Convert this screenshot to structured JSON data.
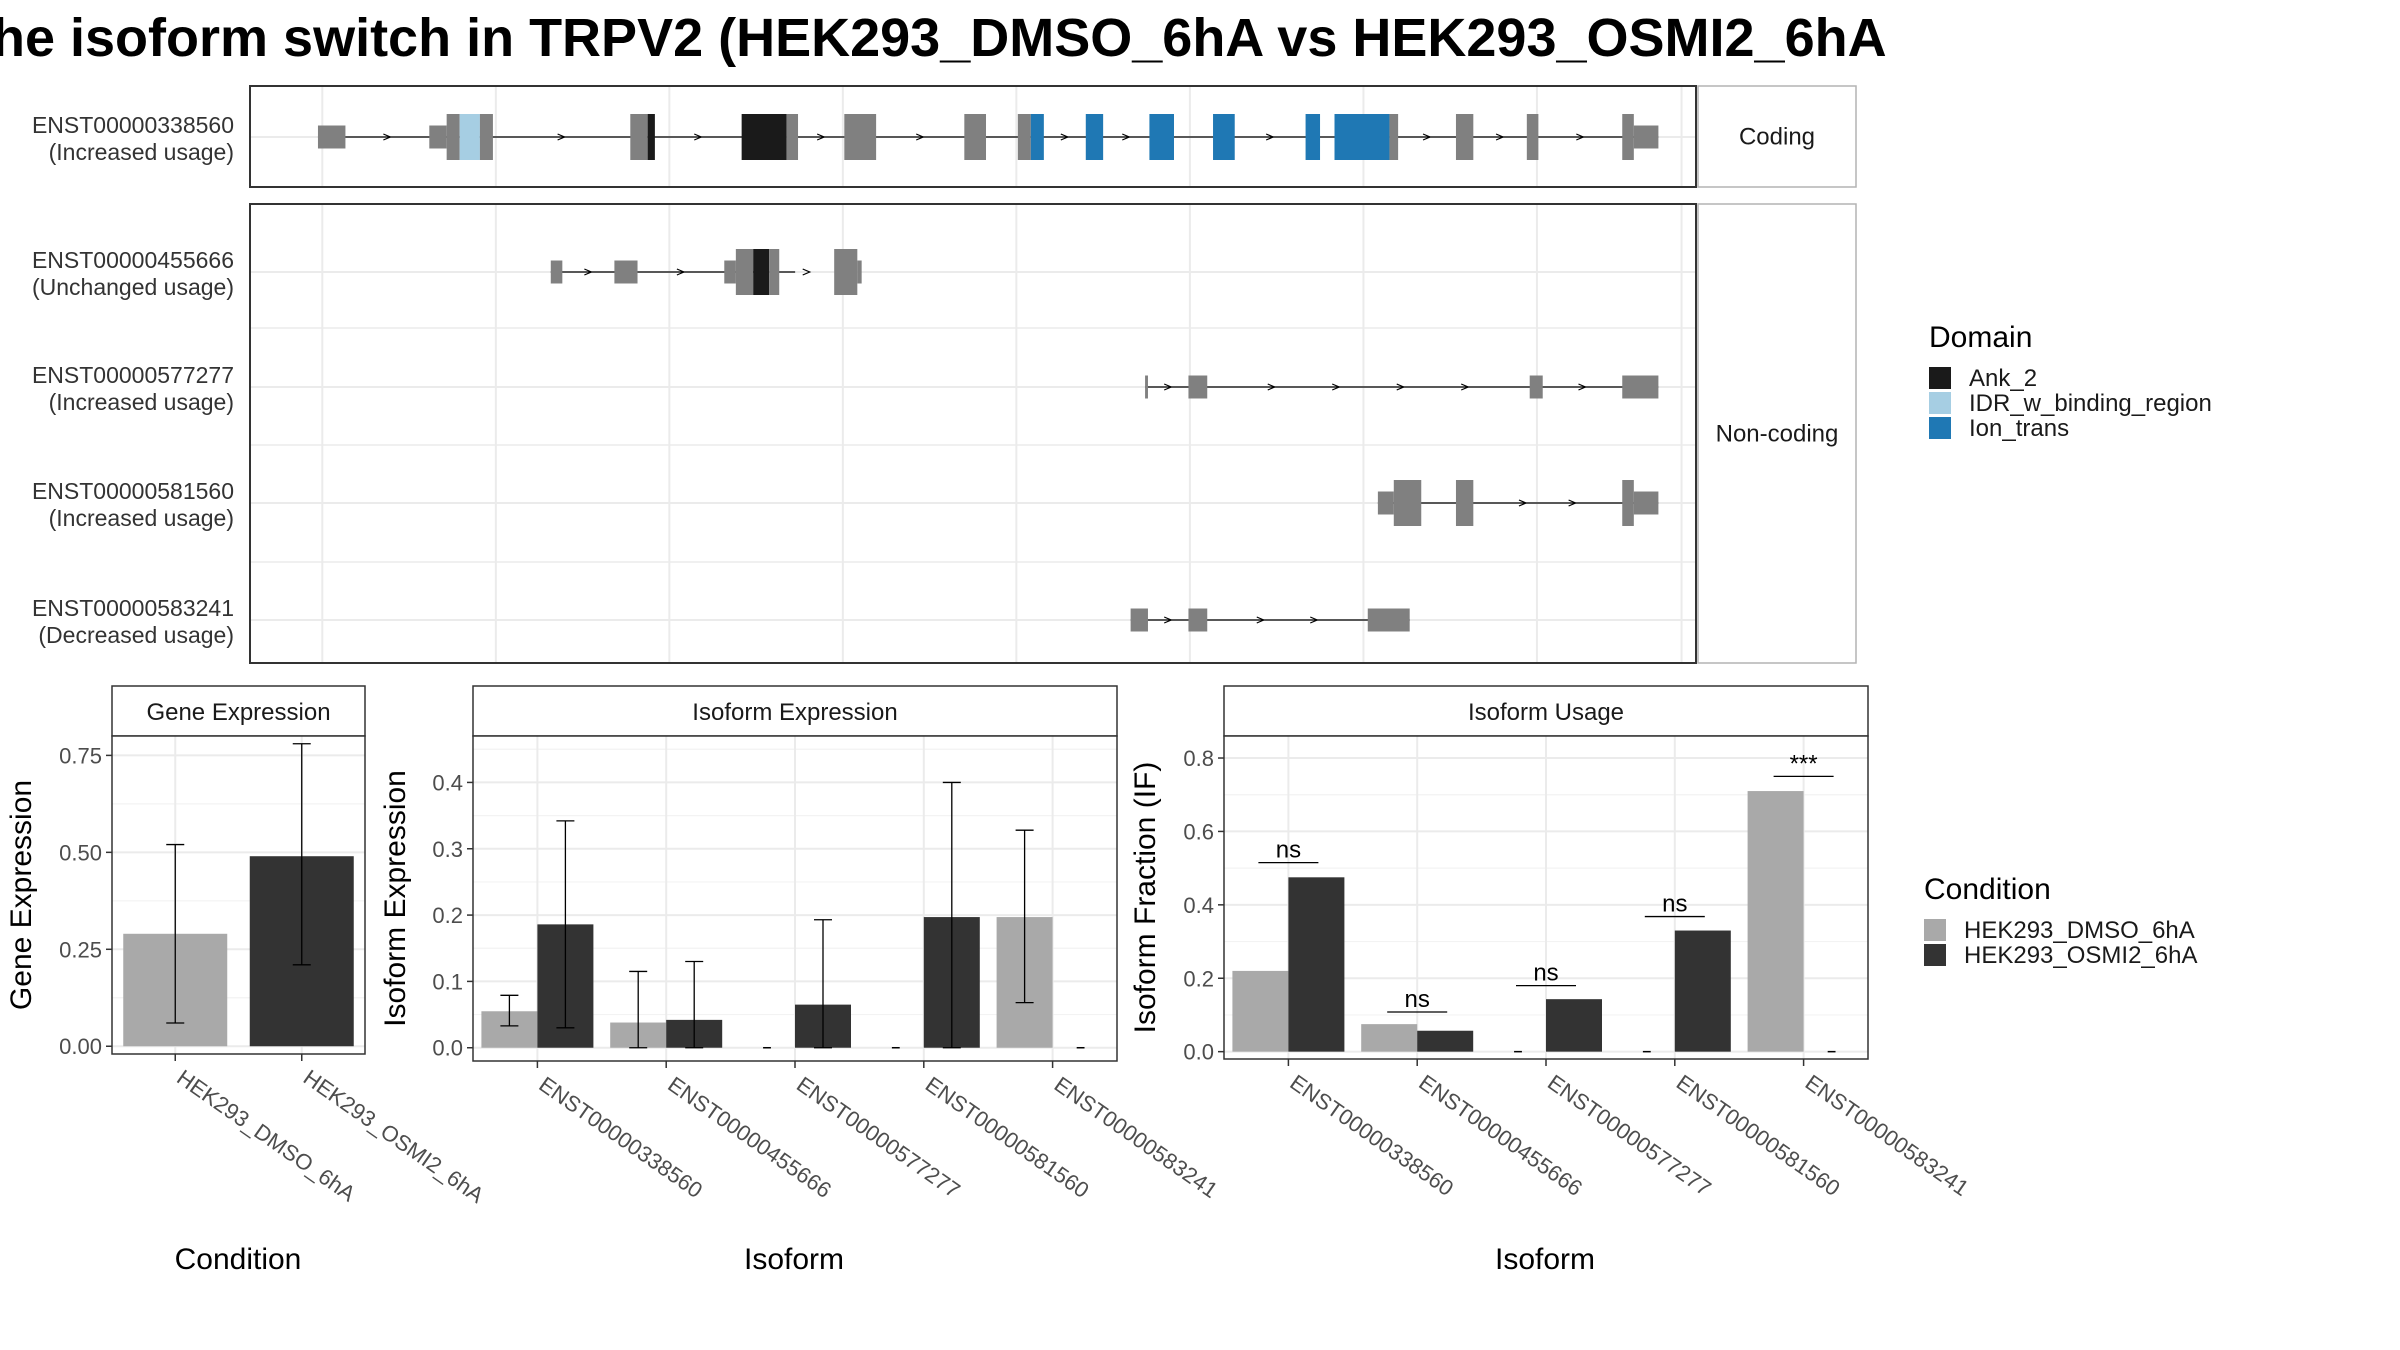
{
  "title": "he isoform switch in TRPV2 (HEK293_DMSO_6hA vs HEK293_OSMI2_6hA",
  "colors": {
    "exon_gray": "#808080",
    "ank2": "#1a1a1a",
    "idr": "#a6cee3",
    "ion_trans": "#1f78b4",
    "dmso": "#a9a9a9",
    "osmi2": "#333333",
    "grid": "#ebebeb",
    "panel_border": "#333333"
  },
  "structure": {
    "genomic_range": [
      0,
      100
    ],
    "strips": {
      "coding": "Coding",
      "noncoding": "Non-coding"
    },
    "transcripts": [
      {
        "id": "ENST00000338560",
        "usage": "(Increased usage)",
        "group": "coding",
        "span": [
          4.7,
          97.4
        ],
        "exons": [
          {
            "start": 4.7,
            "end": 6.6,
            "h": "small",
            "fill": "exon_gray"
          },
          {
            "start": 12.4,
            "end": 13.6,
            "h": "small",
            "fill": "exon_gray"
          },
          {
            "start": 13.6,
            "end": 14.5,
            "h": "large",
            "fill": "exon_gray"
          },
          {
            "start": 14.5,
            "end": 15.9,
            "h": "large",
            "fill": "idr"
          },
          {
            "start": 15.9,
            "end": 16.8,
            "h": "large",
            "fill": "exon_gray"
          },
          {
            "start": 26.3,
            "end": 27.5,
            "h": "large",
            "fill": "exon_gray"
          },
          {
            "start": 27.5,
            "end": 28.0,
            "h": "large",
            "fill": "ank2"
          },
          {
            "start": 34.0,
            "end": 37.1,
            "h": "large",
            "fill": "ank2"
          },
          {
            "start": 37.1,
            "end": 37.9,
            "h": "large",
            "fill": "exon_gray"
          },
          {
            "start": 41.1,
            "end": 43.3,
            "h": "large",
            "fill": "exon_gray"
          },
          {
            "start": 49.4,
            "end": 50.9,
            "h": "large",
            "fill": "exon_gray"
          },
          {
            "start": 53.1,
            "end": 54.0,
            "h": "large",
            "fill": "exon_gray"
          },
          {
            "start": 54.0,
            "end": 54.9,
            "h": "large",
            "fill": "ion_trans"
          },
          {
            "start": 57.8,
            "end": 59.0,
            "h": "large",
            "fill": "ion_trans"
          },
          {
            "start": 62.2,
            "end": 63.9,
            "h": "large",
            "fill": "ion_trans"
          },
          {
            "start": 66.6,
            "end": 68.1,
            "h": "large",
            "fill": "ion_trans"
          },
          {
            "start": 73.0,
            "end": 74.0,
            "h": "large",
            "fill": "ion_trans"
          },
          {
            "start": 75.0,
            "end": 78.8,
            "h": "large",
            "fill": "ion_trans"
          },
          {
            "start": 78.8,
            "end": 79.4,
            "h": "large",
            "fill": "exon_gray"
          },
          {
            "start": 83.4,
            "end": 84.6,
            "h": "large",
            "fill": "exon_gray"
          },
          {
            "start": 88.3,
            "end": 89.1,
            "h": "large",
            "fill": "exon_gray"
          },
          {
            "start": 94.9,
            "end": 95.7,
            "h": "large",
            "fill": "exon_gray"
          },
          {
            "start": 95.7,
            "end": 97.4,
            "h": "small",
            "fill": "exon_gray"
          }
        ]
      },
      {
        "id": "ENST00000455666",
        "usage": "(Unchanged usage)",
        "group": "noncoding",
        "span": [
          20.8,
          37.7
        ],
        "exons": [
          {
            "start": 20.8,
            "end": 21.6,
            "h": "small",
            "fill": "exon_gray"
          },
          {
            "start": 25.2,
            "end": 26.8,
            "h": "small",
            "fill": "exon_gray"
          },
          {
            "start": 32.8,
            "end": 33.6,
            "h": "small",
            "fill": "exon_gray"
          },
          {
            "start": 33.6,
            "end": 34.8,
            "h": "large",
            "fill": "exon_gray"
          },
          {
            "start": 34.8,
            "end": 35.9,
            "h": "large",
            "fill": "ank2"
          },
          {
            "start": 35.9,
            "end": 36.6,
            "h": "large",
            "fill": "exon_gray"
          },
          {
            "start": 40.4,
            "end": 42.0,
            "h": "large",
            "fill": "exon_gray"
          },
          {
            "start": 42.0,
            "end": 42.3,
            "h": "small",
            "fill": "exon_gray"
          }
        ]
      },
      {
        "id": "ENST00000577277",
        "usage": "(Increased usage)",
        "group": "noncoding",
        "span": [
          61.9,
          97.4
        ],
        "exons": [
          {
            "start": 61.9,
            "end": 62.1,
            "h": "small",
            "fill": "exon_gray"
          },
          {
            "start": 64.9,
            "end": 66.2,
            "h": "small",
            "fill": "exon_gray"
          },
          {
            "start": 88.5,
            "end": 89.4,
            "h": "small",
            "fill": "exon_gray"
          },
          {
            "start": 94.9,
            "end": 97.4,
            "h": "small",
            "fill": "exon_gray"
          }
        ]
      },
      {
        "id": "ENST00000581560",
        "usage": "(Increased usage)",
        "group": "noncoding",
        "span": [
          78.0,
          97.4
        ],
        "exons": [
          {
            "start": 78.0,
            "end": 79.1,
            "h": "small",
            "fill": "exon_gray"
          },
          {
            "start": 79.1,
            "end": 81.0,
            "h": "large",
            "fill": "exon_gray"
          },
          {
            "start": 83.4,
            "end": 84.6,
            "h": "large",
            "fill": "exon_gray"
          },
          {
            "start": 94.9,
            "end": 95.7,
            "h": "large",
            "fill": "exon_gray"
          },
          {
            "start": 95.7,
            "end": 97.4,
            "h": "small",
            "fill": "exon_gray"
          }
        ]
      },
      {
        "id": "ENST00000583241",
        "usage": "(Decreased usage)",
        "group": "noncoding",
        "span": [
          60.9,
          80.2
        ],
        "exons": [
          {
            "start": 60.9,
            "end": 62.1,
            "h": "small",
            "fill": "exon_gray"
          },
          {
            "start": 64.9,
            "end": 66.2,
            "h": "small",
            "fill": "exon_gray"
          },
          {
            "start": 77.3,
            "end": 80.2,
            "h": "small",
            "fill": "exon_gray"
          }
        ]
      }
    ]
  },
  "legend_domain": {
    "title": "Domain",
    "items": [
      {
        "label": "Ank_2",
        "color": "ank2"
      },
      {
        "label": "IDR_w_binding_region",
        "color": "idr"
      },
      {
        "label": "Ion_trans",
        "color": "ion_trans"
      }
    ]
  },
  "legend_condition": {
    "title": "Condition",
    "items": [
      {
        "label": "HEK293_DMSO_6hA",
        "color": "dmso"
      },
      {
        "label": "HEK293_OSMI2_6hA",
        "color": "osmi2"
      }
    ]
  },
  "chart_data": [
    {
      "type": "bar",
      "title": "Gene Expression",
      "xlabel": "Condition",
      "ylabel": "Gene Expression",
      "ylim": [
        -0.02,
        0.8
      ],
      "yticks": [
        "0.00",
        "0.25",
        "0.50",
        "0.75"
      ],
      "ytick_values": [
        0,
        0.25,
        0.5,
        0.75
      ],
      "categories": [
        "HEK293_DMSO_6hA",
        "HEK293_OSMI2_6hA"
      ],
      "bars": [
        {
          "category": 0,
          "offset": 0,
          "color": "dmso",
          "value": 0.29,
          "err": [
            0.06,
            0.52
          ]
        },
        {
          "category": 1,
          "offset": 0,
          "color": "osmi2",
          "value": 0.49,
          "err": [
            0.21,
            0.78
          ]
        }
      ]
    },
    {
      "type": "bar",
      "title": "Isoform Expression",
      "xlabel": "Isoform",
      "ylabel": "Isoform Expression",
      "ylim": [
        -0.02,
        0.47
      ],
      "yticks": [
        "0.0",
        "0.1",
        "0.2",
        "0.3",
        "0.4"
      ],
      "ytick_values": [
        0,
        0.1,
        0.2,
        0.3,
        0.4
      ],
      "categories": [
        "ENST00000338560",
        "ENST00000455666",
        "ENST00000577277",
        "ENST00000581560",
        "ENST00000583241"
      ],
      "series": [
        {
          "name": "HEK293_DMSO_6hA",
          "values": [
            0.055,
            0.038,
            0.0,
            0.0,
            0.197
          ]
        },
        {
          "name": "HEK293_OSMI2_6hA",
          "values": [
            0.186,
            0.042,
            0.065,
            0.197,
            0.0
          ]
        }
      ],
      "bars": [
        {
          "category": 0,
          "offset": -1,
          "color": "dmso",
          "value": 0.055,
          "err": [
            0.033,
            0.079
          ]
        },
        {
          "category": 0,
          "offset": 1,
          "color": "osmi2",
          "value": 0.186,
          "err": [
            0.03,
            0.342
          ]
        },
        {
          "category": 1,
          "offset": -1,
          "color": "dmso",
          "value": 0.038,
          "err": [
            0.0,
            0.115
          ]
        },
        {
          "category": 1,
          "offset": 1,
          "color": "osmi2",
          "value": 0.042,
          "err": [
            0.0,
            0.13
          ]
        },
        {
          "category": 2,
          "offset": -1,
          "color": "dmso",
          "value": 0.0,
          "err": [
            0.0,
            0.0
          ]
        },
        {
          "category": 2,
          "offset": 1,
          "color": "osmi2",
          "value": 0.065,
          "err": [
            0.0,
            0.193
          ]
        },
        {
          "category": 3,
          "offset": -1,
          "color": "dmso",
          "value": 0.0,
          "err": [
            0.0,
            0.0
          ]
        },
        {
          "category": 3,
          "offset": 1,
          "color": "osmi2",
          "value": 0.197,
          "err": [
            0.0,
            0.4
          ]
        },
        {
          "category": 4,
          "offset": -1,
          "color": "dmso",
          "value": 0.197,
          "err": [
            0.068,
            0.328
          ]
        },
        {
          "category": 4,
          "offset": 1,
          "color": "osmi2",
          "value": 0.0,
          "err": [
            0.0,
            0.0
          ]
        }
      ]
    },
    {
      "type": "bar",
      "title": "Isoform Usage",
      "xlabel": "Isoform",
      "ylabel": "Isoform Fraction (IF)",
      "ylim": [
        -0.02,
        0.86
      ],
      "yticks": [
        "0.0",
        "0.2",
        "0.4",
        "0.6",
        "0.8"
      ],
      "ytick_values": [
        0,
        0.2,
        0.4,
        0.6,
        0.8
      ],
      "categories": [
        "ENST00000338560",
        "ENST00000455666",
        "ENST00000577277",
        "ENST00000581560",
        "ENST00000583241"
      ],
      "series": [
        {
          "name": "HEK293_DMSO_6hA",
          "values": [
            0.22,
            0.075,
            0.0,
            0.0,
            0.71
          ]
        },
        {
          "name": "HEK293_OSMI2_6hA",
          "values": [
            0.475,
            0.057,
            0.143,
            0.33,
            0.0
          ]
        }
      ],
      "bars": [
        {
          "category": 0,
          "offset": -1,
          "color": "dmso",
          "value": 0.22
        },
        {
          "category": 0,
          "offset": 1,
          "color": "osmi2",
          "value": 0.475
        },
        {
          "category": 1,
          "offset": -1,
          "color": "dmso",
          "value": 0.075
        },
        {
          "category": 1,
          "offset": 1,
          "color": "osmi2",
          "value": 0.057
        },
        {
          "category": 2,
          "offset": -1,
          "color": "dmso",
          "value": 0.0
        },
        {
          "category": 2,
          "offset": 1,
          "color": "osmi2",
          "value": 0.143
        },
        {
          "category": 3,
          "offset": -1,
          "color": "dmso",
          "value": 0.0
        },
        {
          "category": 3,
          "offset": 1,
          "color": "osmi2",
          "value": 0.33
        },
        {
          "category": 4,
          "offset": -1,
          "color": "dmso",
          "value": 0.71
        },
        {
          "category": 4,
          "offset": 1,
          "color": "osmi2",
          "value": 0.0
        }
      ],
      "annotations": [
        {
          "category": 0,
          "label": "ns",
          "y": 0.515
        },
        {
          "category": 1,
          "label": "ns",
          "y": 0.108
        },
        {
          "category": 2,
          "label": "ns",
          "y": 0.18
        },
        {
          "category": 3,
          "label": "ns",
          "y": 0.368
        },
        {
          "category": 4,
          "label": "***",
          "y": 0.75
        }
      ]
    }
  ]
}
